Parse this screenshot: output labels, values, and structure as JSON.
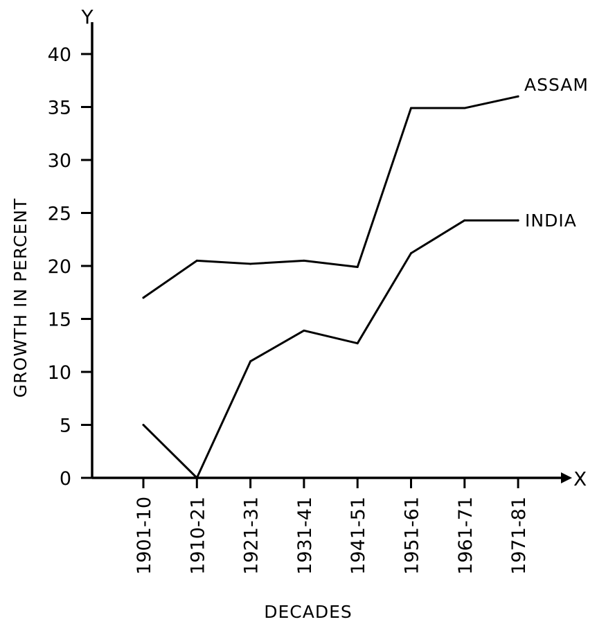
{
  "chart_data": {
    "type": "line",
    "title": "",
    "xlabel": "DECADES",
    "ylabel": "GROWTH IN PERCENT",
    "x_axis_letter": "X",
    "y_axis_letter": "Y",
    "categories": [
      "1901-10",
      "1910-21",
      "1921-31",
      "1931-41",
      "1941-51",
      "1951-61",
      "1961-71",
      "1971-81"
    ],
    "y_ticks": [
      0,
      5,
      10,
      15,
      20,
      25,
      30,
      35,
      40
    ],
    "ylim": [
      0,
      40
    ],
    "grid": false,
    "series": [
      {
        "name": "ASSAM",
        "values": [
          17.0,
          20.5,
          20.2,
          20.5,
          19.9,
          34.9,
          34.9,
          36.0
        ]
      },
      {
        "name": "INDIA",
        "values": [
          5.0,
          0.0,
          11.0,
          13.9,
          12.7,
          21.2,
          24.3,
          24.3
        ]
      }
    ]
  }
}
